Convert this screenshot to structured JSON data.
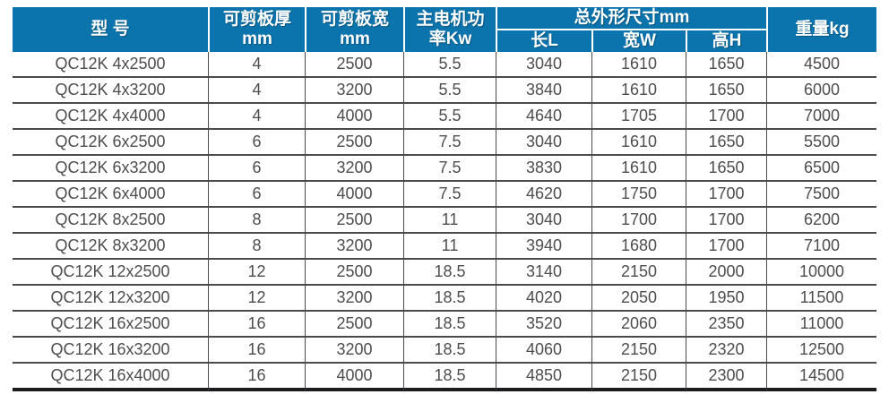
{
  "chart_data": {
    "type": "table",
    "header": {
      "model": "型 号",
      "thickness_l1": "可剪板厚",
      "thickness_l2": "mm",
      "sheet_width_l1": "可剪板宽",
      "sheet_width_l2": "mm",
      "power_l1": "主电机功",
      "power_l2": "率Kw",
      "dims_group": "总外形尺寸mm",
      "dim_length": "长L",
      "dim_width": "宽W",
      "dim_height": "高H",
      "weight": "重量kg"
    },
    "column_keys": [
      "model",
      "thickness",
      "sheet-width",
      "power",
      "length",
      "width",
      "height",
      "weight"
    ],
    "rows": [
      [
        "QC12K 4x2500",
        "4",
        "2500",
        "5.5",
        "3040",
        "1610",
        "1650",
        "4500"
      ],
      [
        "QC12K 4x3200",
        "4",
        "3200",
        "5.5",
        "3840",
        "1610",
        "1650",
        "6000"
      ],
      [
        "QC12K 4x4000",
        "4",
        "4000",
        "5.5",
        "4640",
        "1705",
        "1700",
        "7000"
      ],
      [
        "QC12K 6x2500",
        "6",
        "2500",
        "7.5",
        "3040",
        "1610",
        "1650",
        "5500"
      ],
      [
        "QC12K 6x3200",
        "6",
        "3200",
        "7.5",
        "3830",
        "1610",
        "1650",
        "6500"
      ],
      [
        "QC12K 6x4000",
        "6",
        "4000",
        "7.5",
        "4620",
        "1750",
        "1700",
        "7500"
      ],
      [
        "QC12K 8x2500",
        "8",
        "2500",
        "11",
        "3040",
        "1700",
        "1700",
        "6200"
      ],
      [
        "QC12K 8x3200",
        "8",
        "3200",
        "11",
        "3940",
        "1680",
        "1700",
        "7100"
      ],
      [
        "QC12K 12x2500",
        "12",
        "2500",
        "18.5",
        "3140",
        "2150",
        "2000",
        "10000"
      ],
      [
        "QC12K 12x3200",
        "12",
        "3200",
        "18.5",
        "4020",
        "2050",
        "1950",
        "11500"
      ],
      [
        "QC12K 16x2500",
        "16",
        "2500",
        "18.5",
        "3520",
        "2060",
        "2350",
        "11000"
      ],
      [
        "QC12K 16x3200",
        "16",
        "3200",
        "18.5",
        "4060",
        "2150",
        "2320",
        "12500"
      ],
      [
        "QC12K 16x4000",
        "16",
        "4000",
        "18.5",
        "4850",
        "2150",
        "2300",
        "14500"
      ]
    ]
  },
  "colors": {
    "header_bg": "#0c74ad",
    "header_text": "#ffffff",
    "cell_text": "#4d4d4f",
    "grid_line": "#4b4b4d",
    "bottom_border": "#1c1c1e"
  }
}
